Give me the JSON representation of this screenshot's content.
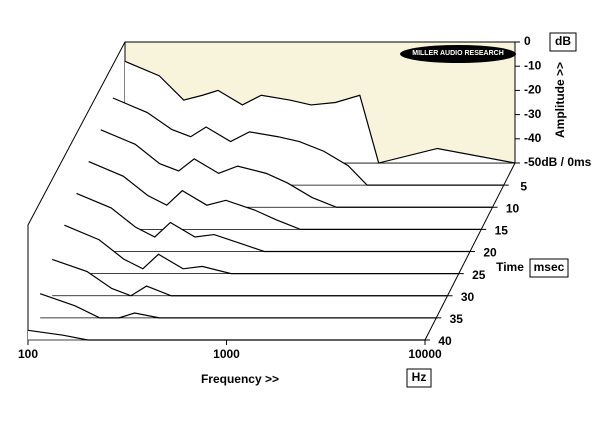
{
  "chart_data": {
    "type": "waterfall",
    "logo": "MILLER AUDIO RESEARCH",
    "x_label": "Frequency >>",
    "x_unit": "Hz",
    "z_label": "Amplitude >>",
    "z_unit": "dB",
    "t_label": "Time",
    "t_unit": "msec",
    "xlim": [
      100,
      10000
    ],
    "xscale": "log",
    "xticks": [
      100,
      1000,
      10000
    ],
    "zlim": [
      -50,
      0
    ],
    "zticks": [
      0,
      -10,
      -20,
      -30,
      -40,
      {
        "value": -50,
        "label": "-50dB / 0ms"
      }
    ],
    "tlim": [
      0,
      40
    ],
    "tticks": [
      5,
      10,
      15,
      20,
      25,
      30,
      35,
      40
    ],
    "panel_color": "#f8f4dc",
    "frequencies": [
      100,
      150,
      200,
      250,
      300,
      400,
      500,
      700,
      900,
      1200,
      1600,
      2000,
      4000,
      10000
    ],
    "times": [
      0,
      5,
      10,
      15,
      20,
      25,
      30,
      35,
      40
    ],
    "values": [
      [
        -8,
        -14,
        -24,
        -22,
        -20,
        -26,
        -22,
        -24,
        -26,
        -25,
        -22,
        -50,
        -44,
        -50
      ],
      [
        -14,
        -20,
        -27,
        -30,
        -26,
        -32,
        -28,
        -30,
        -32,
        -36,
        -42,
        -50,
        -50,
        -50
      ],
      [
        -18,
        -24,
        -32,
        -35,
        -30,
        -36,
        -33,
        -36,
        -40,
        -46,
        -50,
        -50,
        -50,
        -50
      ],
      [
        -22,
        -28,
        -36,
        -40,
        -34,
        -40,
        -38,
        -42,
        -46,
        -50,
        -50,
        -50,
        -50,
        -50
      ],
      [
        -26,
        -32,
        -40,
        -44,
        -38,
        -44,
        -43,
        -47,
        -50,
        -50,
        -50,
        -50,
        -50,
        -50
      ],
      [
        -30,
        -36,
        -44,
        -48,
        -42,
        -48,
        -47,
        -50,
        -50,
        -50,
        -50,
        -50,
        -50,
        -50
      ],
      [
        -35,
        -40,
        -47,
        -50,
        -46,
        -50,
        -50,
        -50,
        -50,
        -50,
        -50,
        -50,
        -50,
        -50
      ],
      [
        -40,
        -45,
        -50,
        -50,
        -48,
        -50,
        -50,
        -50,
        -50,
        -50,
        -50,
        -50,
        -50,
        -50
      ],
      [
        -46,
        -48,
        -50,
        -50,
        -50,
        -50,
        -50,
        -50,
        -50,
        -50,
        -50,
        -50,
        -50,
        -50
      ]
    ]
  }
}
